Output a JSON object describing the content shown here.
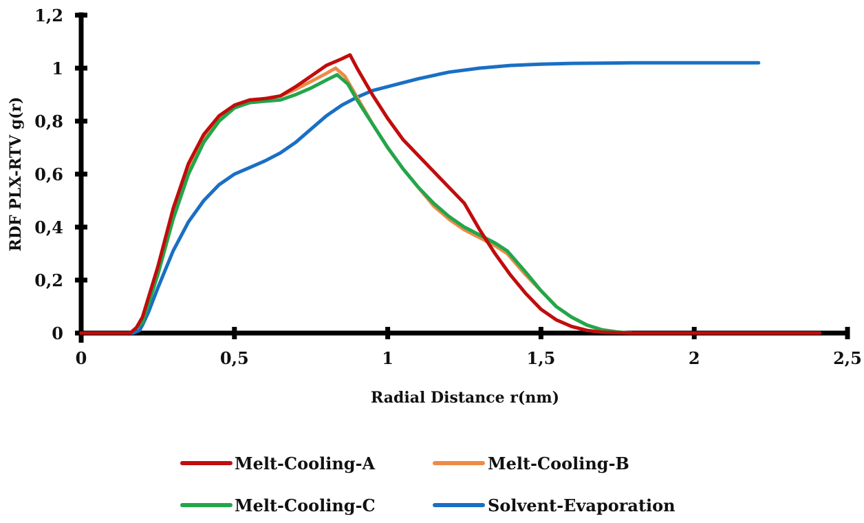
{
  "chart_data": {
    "type": "line",
    "title": "",
    "xlabel": "Radial Distance r(nm)",
    "ylabel": "RDF PLX-RTV g(r)",
    "xlim": [
      0,
      2.5
    ],
    "ylim": [
      0,
      1.2
    ],
    "xticks": [
      0,
      0.5,
      1,
      1.5,
      2,
      2.5
    ],
    "xtick_labels": [
      "0",
      "0,5",
      "1",
      "1,5",
      "2",
      "2,5"
    ],
    "yticks": [
      0,
      0.2,
      0.4,
      0.6,
      0.8,
      1,
      1.2
    ],
    "ytick_labels": [
      "0",
      "0,2",
      "0,4",
      "0,6",
      "0,8",
      "1",
      "1,2"
    ],
    "grid": false,
    "legend_position": "bottom",
    "series": [
      {
        "name": "Solvent-Evaporation",
        "color": "#1a6fc4",
        "x": [
          0,
          0.17,
          0.19,
          0.2,
          0.22,
          0.25,
          0.3,
          0.35,
          0.4,
          0.45,
          0.5,
          0.55,
          0.6,
          0.65,
          0.7,
          0.75,
          0.8,
          0.85,
          0.9,
          0.95,
          1.0,
          1.1,
          1.2,
          1.3,
          1.4,
          1.5,
          1.6,
          1.8,
          2.0,
          2.21
        ],
        "y": [
          0,
          0,
          0.01,
          0.03,
          0.08,
          0.17,
          0.31,
          0.42,
          0.5,
          0.56,
          0.6,
          0.625,
          0.65,
          0.68,
          0.72,
          0.77,
          0.82,
          0.86,
          0.89,
          0.915,
          0.93,
          0.96,
          0.985,
          1.0,
          1.01,
          1.015,
          1.018,
          1.02,
          1.02,
          1.02
        ]
      },
      {
        "name": "Melt-Cooling-B",
        "color": "#ee8a45",
        "x": [
          0,
          0.16,
          0.18,
          0.2,
          0.25,
          0.3,
          0.35,
          0.4,
          0.45,
          0.5,
          0.55,
          0.6,
          0.65,
          0.7,
          0.75,
          0.8,
          0.83,
          0.86,
          0.9,
          0.95,
          1.0,
          1.05,
          1.1,
          1.15,
          1.2,
          1.25,
          1.3,
          1.35,
          1.39,
          1.45,
          1.5,
          1.55,
          1.6,
          1.65,
          1.7,
          1.75,
          1.8,
          1.91
        ],
        "y": [
          0,
          0,
          0.02,
          0.05,
          0.24,
          0.45,
          0.62,
          0.74,
          0.81,
          0.86,
          0.88,
          0.885,
          0.895,
          0.92,
          0.95,
          0.98,
          1.0,
          0.97,
          0.89,
          0.79,
          0.7,
          0.62,
          0.55,
          0.48,
          0.43,
          0.39,
          0.36,
          0.33,
          0.3,
          0.22,
          0.16,
          0.1,
          0.06,
          0.03,
          0.012,
          0.004,
          0,
          0
        ]
      },
      {
        "name": "Melt-Cooling-C",
        "color": "#21a64b",
        "x": [
          0,
          0.16,
          0.18,
          0.2,
          0.25,
          0.3,
          0.35,
          0.4,
          0.45,
          0.5,
          0.55,
          0.6,
          0.65,
          0.7,
          0.75,
          0.8,
          0.835,
          0.87,
          0.9,
          0.95,
          1.0,
          1.05,
          1.1,
          1.15,
          1.2,
          1.25,
          1.3,
          1.35,
          1.39,
          1.45,
          1.5,
          1.55,
          1.6,
          1.65,
          1.7,
          1.75,
          1.8,
          1.91
        ],
        "y": [
          0,
          0,
          0.02,
          0.04,
          0.22,
          0.43,
          0.6,
          0.72,
          0.8,
          0.85,
          0.87,
          0.875,
          0.88,
          0.9,
          0.925,
          0.955,
          0.975,
          0.94,
          0.88,
          0.79,
          0.7,
          0.62,
          0.55,
          0.49,
          0.44,
          0.4,
          0.37,
          0.34,
          0.31,
          0.23,
          0.16,
          0.1,
          0.06,
          0.03,
          0.012,
          0.004,
          0,
          0
        ]
      },
      {
        "name": "Melt-Cooling-A",
        "color": "#c00d0d",
        "x": [
          0,
          0.16,
          0.18,
          0.2,
          0.25,
          0.3,
          0.35,
          0.4,
          0.45,
          0.5,
          0.55,
          0.6,
          0.65,
          0.7,
          0.75,
          0.8,
          0.85,
          0.877,
          0.9,
          0.95,
          1.0,
          1.05,
          1.1,
          1.15,
          1.2,
          1.25,
          1.3,
          1.35,
          1.4,
          1.45,
          1.5,
          1.55,
          1.6,
          1.65,
          1.7,
          1.8,
          2.41
        ],
        "y": [
          0,
          0,
          0.02,
          0.06,
          0.25,
          0.47,
          0.64,
          0.75,
          0.82,
          0.86,
          0.88,
          0.885,
          0.895,
          0.93,
          0.97,
          1.01,
          1.035,
          1.05,
          1.0,
          0.9,
          0.81,
          0.73,
          0.67,
          0.61,
          0.55,
          0.49,
          0.39,
          0.3,
          0.22,
          0.15,
          0.09,
          0.05,
          0.025,
          0.01,
          0.003,
          0,
          0
        ]
      }
    ],
    "legend": [
      {
        "label": "Melt-Cooling-A",
        "color": "#c00d0d"
      },
      {
        "label": "Melt-Cooling-B",
        "color": "#ee8a45"
      },
      {
        "label": "Melt-Cooling-C",
        "color": "#21a64b"
      },
      {
        "label": "Solvent-Evaporation",
        "color": "#1a6fc4"
      }
    ]
  }
}
